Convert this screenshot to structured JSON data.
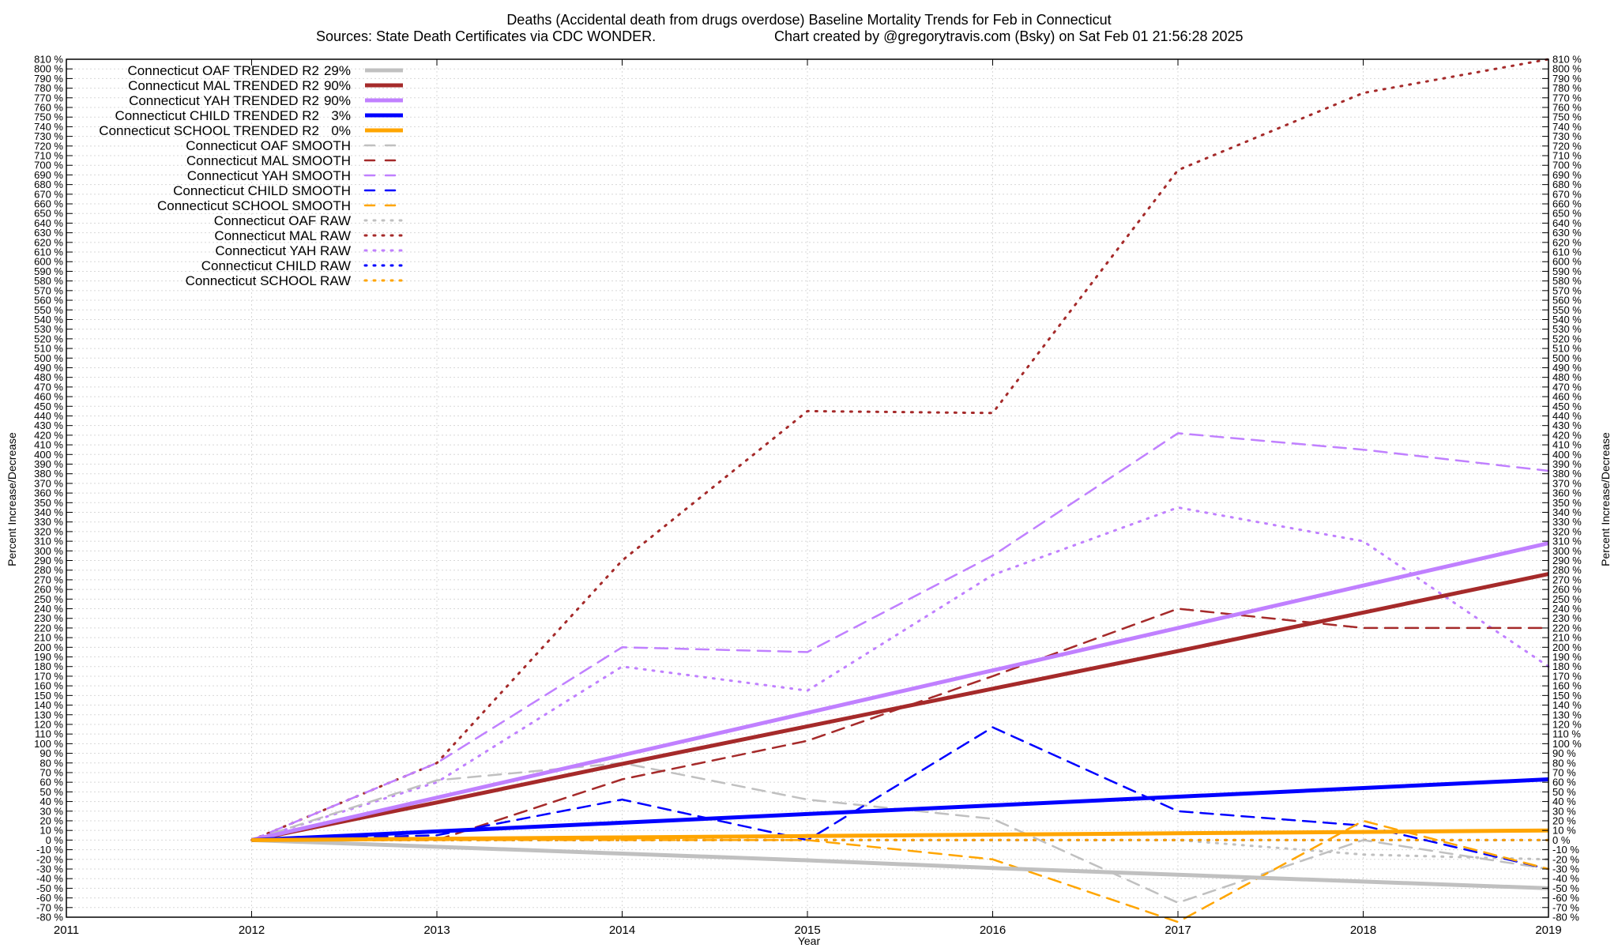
{
  "chart_data": {
    "type": "line",
    "title": "Deaths (Accidental death from drugs overdose)  Baseline Mortality Trends for Feb in Connecticut",
    "subtitle_left": "Sources: State Death Certificates via CDC WONDER.",
    "subtitle_right": "Chart created by @gregorytravis.com (Bsky) on Sat Feb 01 21:56:28 2025",
    "xlabel": "Year",
    "ylabel": "Percent Increase/Decrease",
    "ylabel_right": "Percent Increase/Decrease",
    "xlim": [
      2011,
      2019
    ],
    "ylim": [
      -80,
      810
    ],
    "ytick_step": 10,
    "ytick_suffix": " %",
    "x_ticks": [
      "2011",
      "2012",
      "2013",
      "2014",
      "2015",
      "2016",
      "2017",
      "2018",
      "2019"
    ],
    "grid": true,
    "legend_position": "top-left",
    "x": [
      2012,
      2013,
      2014,
      2015,
      2016,
      2017,
      2018,
      2019
    ],
    "series": [
      {
        "name": "Connecticut OAF TRENDED R2",
        "r2": "29%",
        "style": "solid",
        "color": "#c0c0c0",
        "values": [
          0,
          -7,
          -14,
          -21,
          -29,
          -36,
          -43,
          -50
        ]
      },
      {
        "name": "Connecticut MAL TRENDED R2",
        "r2": "90%",
        "style": "solid",
        "color": "#a52a2a",
        "values": [
          0,
          39,
          79,
          118,
          157,
          196,
          236,
          276
        ]
      },
      {
        "name": "Connecticut YAH TRENDED R2",
        "r2": "90%",
        "style": "solid",
        "color": "#c080ff",
        "values": [
          0,
          44,
          88,
          132,
          176,
          220,
          264,
          308
        ]
      },
      {
        "name": "Connecticut CHILD TRENDED R2",
        "r2": "3%",
        "style": "solid",
        "color": "#0000ff",
        "values": [
          0,
          9,
          18,
          27,
          36,
          45,
          54,
          63
        ]
      },
      {
        "name": "Connecticut SCHOOL TRENDED R2",
        "r2": "0%",
        "style": "solid",
        "color": "#ffa500",
        "values": [
          0,
          1.4,
          2.8,
          4.2,
          5.6,
          7,
          8.4,
          10
        ]
      },
      {
        "name": "Connecticut OAF SMOOTH",
        "r2": "",
        "style": "dashed",
        "color": "#c0c0c0",
        "values": [
          0,
          62,
          80,
          42,
          22,
          -65,
          0,
          -30
        ]
      },
      {
        "name": "Connecticut MAL SMOOTH",
        "r2": "",
        "style": "dashed",
        "color": "#a52a2a",
        "values": [
          0,
          0,
          63,
          103,
          170,
          240,
          220,
          220
        ]
      },
      {
        "name": "Connecticut YAH SMOOTH",
        "r2": "",
        "style": "dashed",
        "color": "#c080ff",
        "values": [
          0,
          80,
          200,
          195,
          295,
          422,
          405,
          383
        ]
      },
      {
        "name": "Connecticut CHILD SMOOTH",
        "r2": "",
        "style": "dashed",
        "color": "#0000ff",
        "values": [
          0,
          5,
          42,
          0,
          117,
          30,
          15,
          -30
        ]
      },
      {
        "name": "Connecticut SCHOOL SMOOTH",
        "r2": "",
        "style": "dashed",
        "color": "#ffa500",
        "values": [
          0,
          0,
          0,
          0,
          -20,
          -85,
          20,
          -30
        ]
      },
      {
        "name": "Connecticut OAF RAW",
        "r2": "",
        "style": "dotted",
        "color": "#c0c0c0",
        "values": [
          0,
          0,
          0,
          0,
          0,
          0,
          -15,
          -20
        ]
      },
      {
        "name": "Connecticut MAL RAW",
        "r2": "",
        "style": "dotted",
        "color": "#a52a2a",
        "values": [
          0,
          80,
          290,
          445,
          443,
          695,
          775,
          810
        ]
      },
      {
        "name": "Connecticut YAH RAW",
        "r2": "",
        "style": "dotted",
        "color": "#c080ff",
        "values": [
          0,
          60,
          180,
          155,
          275,
          345,
          310,
          180
        ]
      },
      {
        "name": "Connecticut CHILD RAW",
        "r2": "",
        "style": "dotted",
        "color": "#0000ff",
        "values": [
          0,
          0,
          0,
          0,
          0,
          0,
          0,
          0
        ]
      },
      {
        "name": "Connecticut SCHOOL RAW",
        "r2": "",
        "style": "dotted",
        "color": "#ffa500",
        "values": [
          0,
          0,
          0,
          0,
          0,
          0,
          0,
          0
        ]
      }
    ]
  }
}
